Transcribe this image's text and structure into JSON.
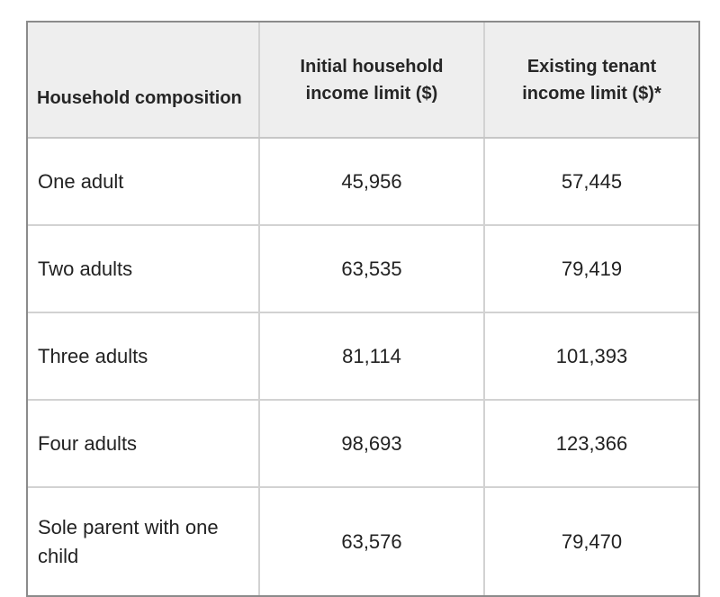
{
  "table": {
    "columns": [
      {
        "label": "Household composition"
      },
      {
        "label": "Initial household income limit ($)"
      },
      {
        "label": "Existing tenant income limit ($)*"
      }
    ],
    "rows": [
      {
        "composition": "One adult",
        "initial_limit": "45,956",
        "existing_limit": "57,445"
      },
      {
        "composition": "Two adults",
        "initial_limit": "63,535",
        "existing_limit": "79,419"
      },
      {
        "composition": "Three adults",
        "initial_limit": "81,114",
        "existing_limit": "101,393"
      },
      {
        "composition": "Four adults",
        "initial_limit": "98,693",
        "existing_limit": "123,366"
      },
      {
        "composition": "Sole parent with one child",
        "initial_limit": "63,576",
        "existing_limit": "79,470"
      }
    ]
  },
  "colors": {
    "header_background": "#eeeeee",
    "outer_border": "#8b8b8b",
    "inner_border": "#d2d2d2",
    "text": "#222222",
    "page_background": "#ffffff"
  }
}
